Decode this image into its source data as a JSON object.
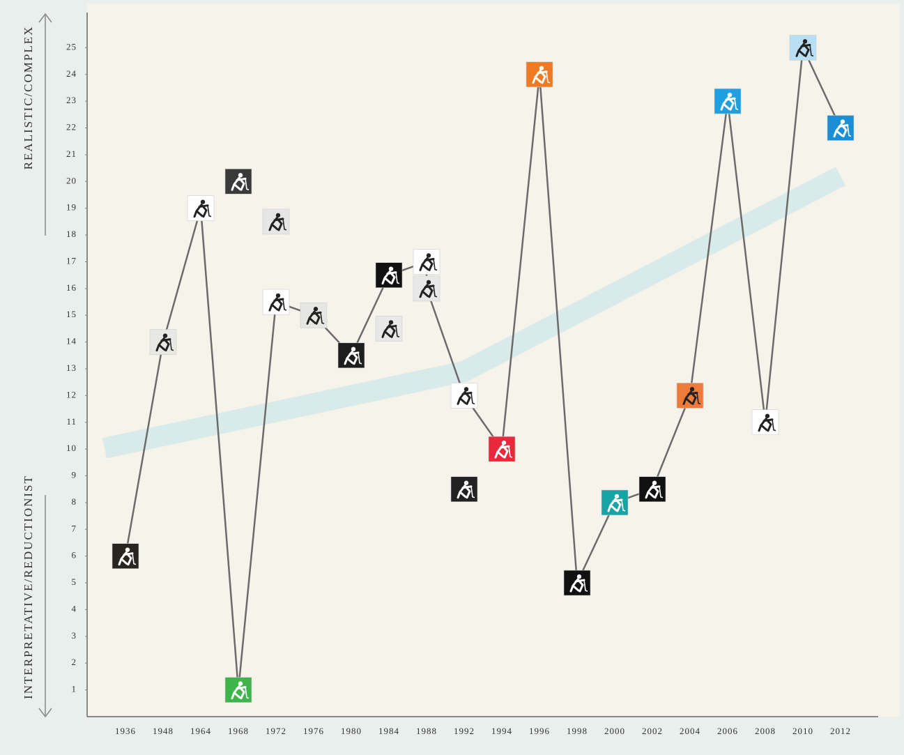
{
  "chart_data": {
    "type": "line",
    "y_label_top": "REALISTIC/COMPLEX",
    "y_label_bottom": "INTERPRETATIVE/REDUCTIONIST",
    "categories": [
      "1936",
      "1948",
      "1964",
      "1968",
      "1972",
      "1976",
      "1980",
      "1984",
      "1988",
      "1992",
      "1994",
      "1996",
      "1998",
      "2000",
      "2002",
      "2004",
      "2006",
      "2008",
      "2010",
      "2012"
    ],
    "ylim": [
      0,
      26
    ],
    "yticks": [
      1,
      2,
      3,
      4,
      5,
      6,
      7,
      8,
      9,
      10,
      11,
      12,
      13,
      14,
      15,
      16,
      17,
      18,
      19,
      20,
      21,
      22,
      23,
      24,
      25
    ],
    "line_color": "#6b6b6b",
    "trend": {
      "color": "#d3e7ea",
      "x": [
        "1936",
        "1992",
        "2012"
      ],
      "values": [
        10.2,
        12.9,
        20.2
      ]
    },
    "series": [
      {
        "connected": true,
        "x": [
          "1936",
          "1948",
          "1964",
          "1968",
          "1972",
          "1976",
          "1980",
          "1984",
          "1988",
          "1988",
          "1992",
          "1994",
          "1996",
          "1998",
          "2000",
          "2002",
          "2004",
          "2006",
          "2008",
          "2010",
          "2012"
        ],
        "values": [
          6,
          14,
          19,
          1,
          15.5,
          15,
          13.5,
          16.5,
          17,
          16,
          12,
          10,
          24,
          5,
          8,
          8.5,
          12,
          23,
          11,
          25,
          22
        ],
        "colors": [
          "#2b2520",
          "#e8e8e4",
          "#ffffff",
          "#3db54a",
          "#ffffff",
          "#e6e6e2",
          "#1e1e1e",
          "#111111",
          "#ffffff",
          "#e8e8e8",
          "#ffffff",
          "#e8283b",
          "#f07a22",
          "#111111",
          "#18a3a4",
          "#111111",
          "#ef7b3a",
          "#1ea0e0",
          "#ffffff",
          "#b9dff5",
          "#1a8fd6"
        ]
      },
      {
        "connected": false,
        "x": [
          "1968",
          "1972",
          "1984",
          "1992"
        ],
        "values": [
          20,
          18.5,
          14.5,
          8.5
        ],
        "colors": [
          "#3a3a3a",
          "#e6e6e6",
          "#e8e8e8",
          "#222222"
        ]
      }
    ]
  }
}
